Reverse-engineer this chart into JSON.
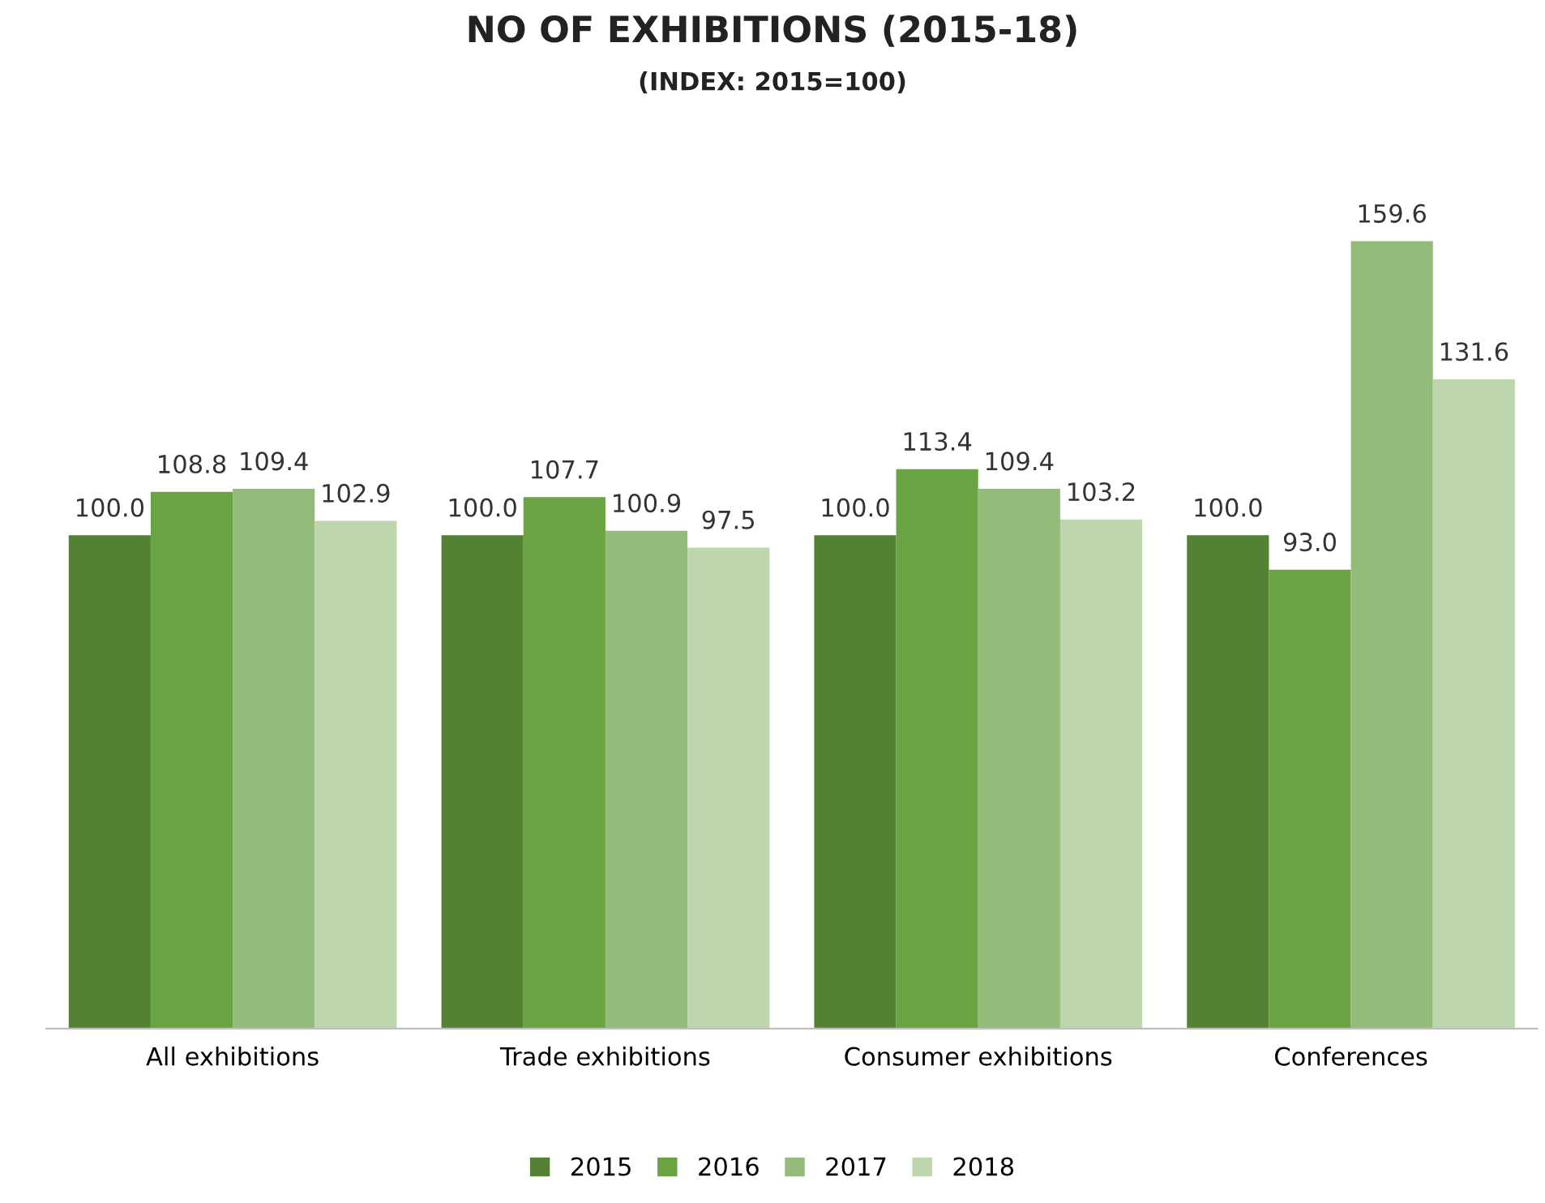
{
  "chart_data": {
    "type": "bar",
    "title": "NO OF EXHIBITIONS (2015-18)",
    "subtitle": "(INDEX: 2015=100)",
    "categories": [
      "All exhibitions",
      "Trade exhibitions",
      "Consumer exhibitions",
      "Conferences"
    ],
    "series": [
      {
        "name": "2015",
        "color": "#548235",
        "values": [
          100.0,
          100.0,
          100.0,
          100.0
        ],
        "value_labels": [
          "100.0",
          "100.0",
          "100.0",
          "100.0"
        ]
      },
      {
        "name": "2016",
        "color": "#6aa442",
        "values": [
          108.8,
          107.7,
          113.4,
          93.0
        ],
        "value_labels": [
          "108.8",
          "107.7",
          "113.4",
          "93.0"
        ]
      },
      {
        "name": "2017",
        "color": "#93bb79",
        "values": [
          109.4,
          100.9,
          109.4,
          159.6
        ],
        "value_labels": [
          "109.4",
          "100.9",
          "109.4",
          "159.6"
        ]
      },
      {
        "name": "2018",
        "color": "#bdd6ae",
        "values": [
          102.9,
          97.5,
          103.2,
          131.6
        ],
        "value_labels": [
          "102.9",
          "97.5",
          "103.2",
          "131.6"
        ]
      }
    ],
    "legend": "bottom",
    "grid": false,
    "tick_labels": "x"
  }
}
